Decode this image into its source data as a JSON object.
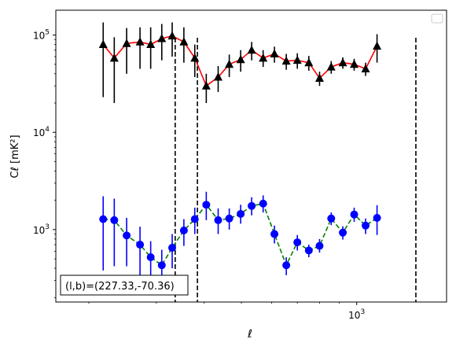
{
  "chart_data": {
    "type": "scatter",
    "xscale": "log",
    "yscale": "log",
    "xlim": [
      164,
      1716
    ],
    "ylim": [
      180,
      180000
    ],
    "xlabel": "ℓ",
    "ylabel": "Cℓ [mK²]",
    "xticks": [
      {
        "value": 1000,
        "base": "10",
        "exp": "3"
      }
    ],
    "yticks": [
      {
        "value": 1000,
        "base": "10",
        "exp": "3"
      },
      {
        "value": 10000,
        "base": "10",
        "exp": "4"
      },
      {
        "value": 100000,
        "base": "10",
        "exp": "5"
      }
    ],
    "annotation": "(l,b)=(227.33,-70.36)",
    "vlines": [
      336,
      384,
      1427
    ],
    "series": [
      {
        "color": "#000000",
        "line_color": "#ff0000",
        "line_style": "solid",
        "marker": "triangle",
        "points": [
          {
            "x": 218,
            "y": 80000,
            "lo": 23000,
            "hi": 135000
          },
          {
            "x": 233,
            "y": 58000,
            "lo": 20000,
            "hi": 95000
          },
          {
            "x": 251,
            "y": 82000,
            "lo": 40000,
            "hi": 118000
          },
          {
            "x": 272,
            "y": 85000,
            "lo": 45000,
            "hi": 120000
          },
          {
            "x": 290,
            "y": 80000,
            "lo": 45000,
            "hi": 120000
          },
          {
            "x": 310,
            "y": 92000,
            "lo": 55000,
            "hi": 130000
          },
          {
            "x": 330,
            "y": 98000,
            "lo": 60000,
            "hi": 135000
          },
          {
            "x": 354,
            "y": 85000,
            "lo": 52000,
            "hi": 120000
          },
          {
            "x": 378,
            "y": 58000,
            "lo": 37000,
            "hi": 80000
          },
          {
            "x": 405,
            "y": 30000,
            "lo": 20000,
            "hi": 40000
          },
          {
            "x": 435,
            "y": 37000,
            "lo": 26000,
            "hi": 48000
          },
          {
            "x": 465,
            "y": 50000,
            "lo": 37000,
            "hi": 63000
          },
          {
            "x": 498,
            "y": 56000,
            "lo": 42000,
            "hi": 70000
          },
          {
            "x": 532,
            "y": 70000,
            "lo": 55000,
            "hi": 85000
          },
          {
            "x": 570,
            "y": 58000,
            "lo": 47000,
            "hi": 70000
          },
          {
            "x": 610,
            "y": 64000,
            "lo": 52000,
            "hi": 76000
          },
          {
            "x": 655,
            "y": 54000,
            "lo": 44000,
            "hi": 64000
          },
          {
            "x": 700,
            "y": 55000,
            "lo": 45000,
            "hi": 65000
          },
          {
            "x": 750,
            "y": 52000,
            "lo": 43000,
            "hi": 61000
          },
          {
            "x": 800,
            "y": 36000,
            "lo": 30000,
            "hi": 42000
          },
          {
            "x": 858,
            "y": 47000,
            "lo": 40000,
            "hi": 54000
          },
          {
            "x": 920,
            "y": 52000,
            "lo": 45000,
            "hi": 59000
          },
          {
            "x": 985,
            "y": 50000,
            "lo": 43000,
            "hi": 57000
          },
          {
            "x": 1055,
            "y": 45000,
            "lo": 38000,
            "hi": 52000
          },
          {
            "x": 1130,
            "y": 77000,
            "lo": 52000,
            "hi": 102000
          }
        ]
      },
      {
        "color": "#0000ff",
        "line_color": "#008000",
        "line_style": "dashed",
        "marker": "circle",
        "points": [
          {
            "x": 218,
            "y": 1280,
            "lo": 380,
            "hi": 2200
          },
          {
            "x": 233,
            "y": 1250,
            "lo": 420,
            "hi": 2080
          },
          {
            "x": 251,
            "y": 870,
            "lo": 420,
            "hi": 1320
          },
          {
            "x": 272,
            "y": 700,
            "lo": 330,
            "hi": 1070
          },
          {
            "x": 290,
            "y": 520,
            "lo": 280,
            "hi": 760
          },
          {
            "x": 310,
            "y": 430,
            "lo": 240,
            "hi": 620
          },
          {
            "x": 330,
            "y": 650,
            "lo": 400,
            "hi": 900
          },
          {
            "x": 354,
            "y": 980,
            "lo": 680,
            "hi": 1280
          },
          {
            "x": 378,
            "y": 1280,
            "lo": 900,
            "hi": 1680
          },
          {
            "x": 405,
            "y": 1800,
            "lo": 1250,
            "hi": 2450
          },
          {
            "x": 435,
            "y": 1250,
            "lo": 900,
            "hi": 1650
          },
          {
            "x": 465,
            "y": 1300,
            "lo": 1000,
            "hi": 1650
          },
          {
            "x": 498,
            "y": 1450,
            "lo": 1150,
            "hi": 1800
          },
          {
            "x": 532,
            "y": 1750,
            "lo": 1400,
            "hi": 2150
          },
          {
            "x": 570,
            "y": 1850,
            "lo": 1500,
            "hi": 2250
          },
          {
            "x": 610,
            "y": 900,
            "lo": 720,
            "hi": 1100
          },
          {
            "x": 655,
            "y": 430,
            "lo": 340,
            "hi": 520
          },
          {
            "x": 700,
            "y": 740,
            "lo": 610,
            "hi": 880
          },
          {
            "x": 750,
            "y": 610,
            "lo": 520,
            "hi": 700
          },
          {
            "x": 800,
            "y": 680,
            "lo": 580,
            "hi": 800
          },
          {
            "x": 858,
            "y": 1300,
            "lo": 1110,
            "hi": 1500
          },
          {
            "x": 920,
            "y": 930,
            "lo": 790,
            "hi": 1080
          },
          {
            "x": 985,
            "y": 1430,
            "lo": 1200,
            "hi": 1680
          },
          {
            "x": 1055,
            "y": 1100,
            "lo": 900,
            "hi": 1300
          },
          {
            "x": 1130,
            "y": 1320,
            "lo": 880,
            "hi": 1780
          }
        ]
      }
    ]
  }
}
